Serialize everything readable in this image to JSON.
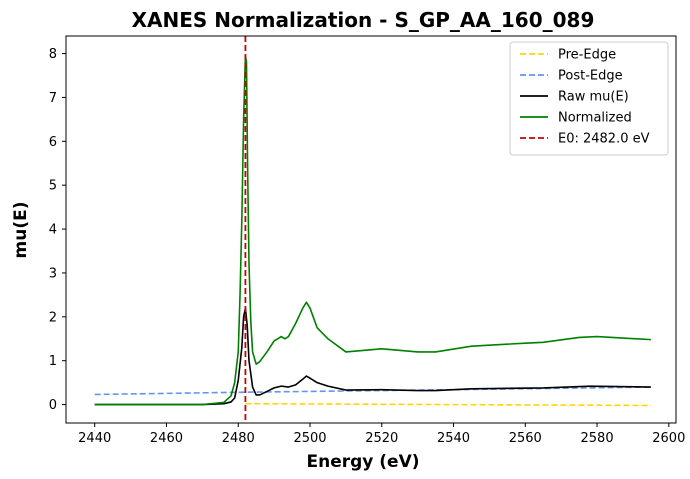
{
  "chart_data": {
    "type": "line",
    "title": "XANES Normalization - S_GP_AA_160_089",
    "xlabel": "Energy (eV)",
    "ylabel": "mu(E)",
    "xlim": [
      2432,
      2602
    ],
    "ylim": [
      -0.42,
      8.4
    ],
    "xticks": [
      2440,
      2460,
      2480,
      2500,
      2520,
      2540,
      2560,
      2580,
      2600
    ],
    "yticks": [
      0,
      1,
      2,
      3,
      4,
      5,
      6,
      7,
      8
    ],
    "grid": false,
    "legend_position": "top-right",
    "series": [
      {
        "name": "Pre-Edge",
        "color": "#FFD700",
        "style": "dashed",
        "x": [
          2482,
          2595
        ],
        "y": [
          0.02,
          -0.02
        ]
      },
      {
        "name": "Post-Edge",
        "color": "#6495ED",
        "style": "dashed",
        "x": [
          2440,
          2480,
          2520,
          2560,
          2595
        ],
        "y": [
          0.23,
          0.28,
          0.32,
          0.36,
          0.4
        ]
      },
      {
        "name": "Raw mu(E)",
        "color": "#000000",
        "style": "solid",
        "x": [
          2440,
          2470,
          2476,
          2478,
          2479,
          2480,
          2481,
          2481.5,
          2482,
          2482.5,
          2483,
          2484,
          2485,
          2486,
          2488,
          2490,
          2492,
          2494,
          2496,
          2498,
          2499,
          2500,
          2502,
          2505,
          2510,
          2520,
          2530,
          2535,
          2545,
          2565,
          2578,
          2595
        ],
        "y": [
          0.0,
          0.0,
          0.02,
          0.06,
          0.15,
          0.55,
          1.3,
          2.0,
          2.2,
          1.8,
          1.0,
          0.4,
          0.22,
          0.22,
          0.3,
          0.38,
          0.42,
          0.4,
          0.45,
          0.58,
          0.65,
          0.6,
          0.5,
          0.42,
          0.33,
          0.34,
          0.32,
          0.32,
          0.36,
          0.38,
          0.42,
          0.4
        ]
      },
      {
        "name": "Normalized",
        "color": "#008000",
        "style": "solid",
        "x": [
          2440,
          2470,
          2476,
          2478,
          2479,
          2480,
          2480.5,
          2481,
          2481.5,
          2482,
          2482.3,
          2482.6,
          2483,
          2483.5,
          2484,
          2485,
          2486,
          2488,
          2490,
          2491,
          2492,
          2493,
          2494,
          2496,
          2498,
          2499,
          2500,
          2502,
          2505,
          2510,
          2520,
          2530,
          2535,
          2545,
          2560,
          2565,
          2575,
          2580,
          2595
        ],
        "y": [
          0.0,
          0.0,
          0.05,
          0.2,
          0.5,
          1.2,
          2.5,
          4.2,
          6.5,
          7.95,
          7.8,
          5.5,
          3.2,
          1.9,
          1.2,
          0.92,
          0.98,
          1.2,
          1.45,
          1.5,
          1.55,
          1.5,
          1.55,
          1.85,
          2.2,
          2.33,
          2.2,
          1.75,
          1.5,
          1.2,
          1.27,
          1.2,
          1.2,
          1.33,
          1.4,
          1.42,
          1.53,
          1.55,
          1.48
        ]
      },
      {
        "name": "E0: 2482.0 eV",
        "color": "#CC0000",
        "style": "dashed",
        "orientation": "vertical",
        "x_value": 2482.0
      }
    ]
  }
}
